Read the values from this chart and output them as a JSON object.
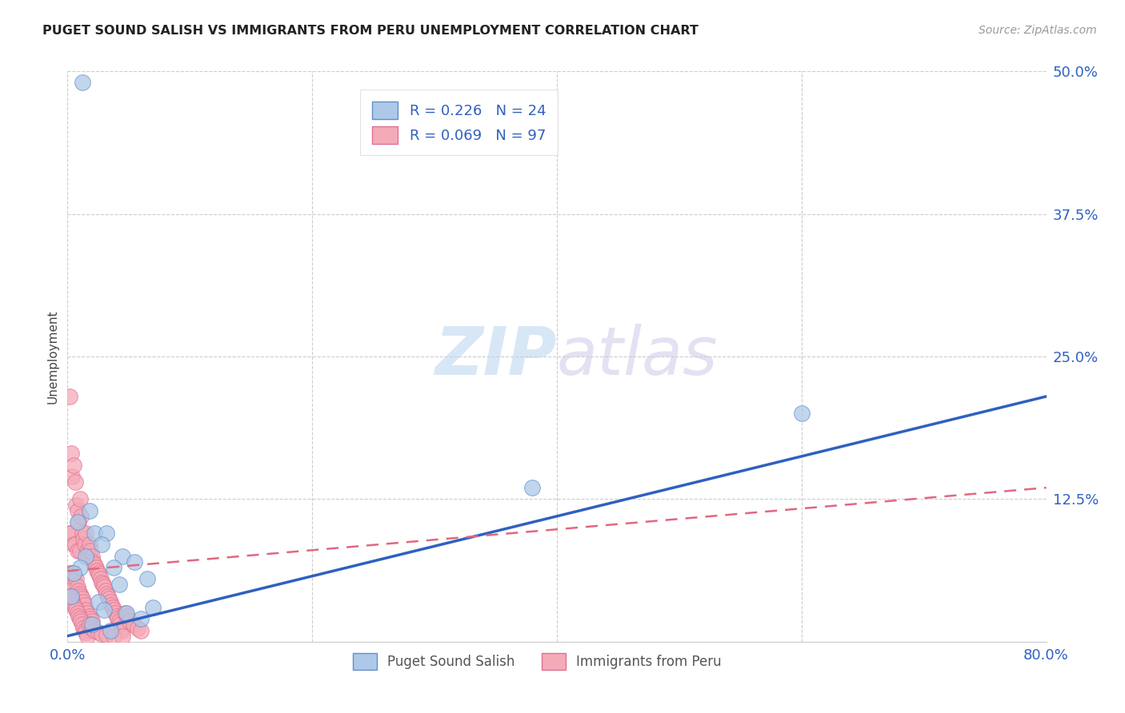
{
  "title": "PUGET SOUND SALISH VS IMMIGRANTS FROM PERU UNEMPLOYMENT CORRELATION CHART",
  "source": "Source: ZipAtlas.com",
  "ylabel": "Unemployment",
  "xlabel": "",
  "xlim": [
    0.0,
    0.8
  ],
  "ylim": [
    0.0,
    0.5
  ],
  "xticks": [
    0.0,
    0.2,
    0.4,
    0.6,
    0.8
  ],
  "xtick_labels": [
    "0.0%",
    "",
    "",
    "",
    "80.0%"
  ],
  "yticks": [
    0.0,
    0.125,
    0.25,
    0.375,
    0.5
  ],
  "ytick_labels": [
    "",
    "12.5%",
    "25.0%",
    "37.5%",
    "50.0%"
  ],
  "blue_R": 0.226,
  "blue_N": 24,
  "pink_R": 0.069,
  "pink_N": 97,
  "blue_label": "Puget Sound Salish",
  "pink_label": "Immigrants from Peru",
  "blue_color": "#adc8e8",
  "pink_color": "#f5aab8",
  "blue_edge_color": "#6090c8",
  "pink_edge_color": "#e07090",
  "blue_line_color": "#3060c0",
  "pink_line_color": "#e06880",
  "legend_R_color": "#3060c0",
  "background_color": "#ffffff",
  "blue_line_x0": 0.0,
  "blue_line_y0": 0.005,
  "blue_line_x1": 0.8,
  "blue_line_y1": 0.215,
  "pink_line_x0": 0.0,
  "pink_line_y0": 0.062,
  "pink_line_x1": 0.8,
  "pink_line_y1": 0.135,
  "blue_scatter_x": [
    0.012,
    0.008,
    0.022,
    0.018,
    0.032,
    0.045,
    0.028,
    0.015,
    0.038,
    0.055,
    0.01,
    0.005,
    0.065,
    0.042,
    0.003,
    0.07,
    0.025,
    0.03,
    0.048,
    0.06,
    0.02,
    0.035,
    0.6,
    0.38
  ],
  "blue_scatter_y": [
    0.49,
    0.105,
    0.095,
    0.115,
    0.095,
    0.075,
    0.085,
    0.075,
    0.065,
    0.07,
    0.065,
    0.06,
    0.055,
    0.05,
    0.04,
    0.03,
    0.035,
    0.028,
    0.025,
    0.02,
    0.015,
    0.01,
    0.2,
    0.135
  ],
  "pink_scatter_x": [
    0.002,
    0.002,
    0.002,
    0.003,
    0.003,
    0.003,
    0.004,
    0.004,
    0.005,
    0.005,
    0.005,
    0.006,
    0.006,
    0.006,
    0.007,
    0.007,
    0.008,
    0.008,
    0.008,
    0.009,
    0.009,
    0.01,
    0.01,
    0.01,
    0.011,
    0.011,
    0.012,
    0.012,
    0.013,
    0.013,
    0.014,
    0.014,
    0.015,
    0.015,
    0.016,
    0.016,
    0.017,
    0.018,
    0.018,
    0.019,
    0.019,
    0.02,
    0.02,
    0.021,
    0.022,
    0.023,
    0.024,
    0.025,
    0.026,
    0.027,
    0.028,
    0.029,
    0.03,
    0.031,
    0.032,
    0.033,
    0.034,
    0.035,
    0.036,
    0.037,
    0.038,
    0.039,
    0.04,
    0.041,
    0.042,
    0.043,
    0.044,
    0.045,
    0.047,
    0.049,
    0.051,
    0.054,
    0.057,
    0.06,
    0.002,
    0.003,
    0.004,
    0.005,
    0.006,
    0.007,
    0.008,
    0.009,
    0.01,
    0.011,
    0.012,
    0.013,
    0.014,
    0.015,
    0.016,
    0.018,
    0.02,
    0.022,
    0.025,
    0.028,
    0.032,
    0.038,
    0.045
  ],
  "pink_scatter_y": [
    0.215,
    0.095,
    0.06,
    0.165,
    0.095,
    0.06,
    0.145,
    0.06,
    0.155,
    0.085,
    0.055,
    0.14,
    0.085,
    0.05,
    0.12,
    0.055,
    0.115,
    0.08,
    0.048,
    0.105,
    0.045,
    0.125,
    0.08,
    0.042,
    0.11,
    0.04,
    0.095,
    0.038,
    0.09,
    0.035,
    0.085,
    0.032,
    0.095,
    0.028,
    0.08,
    0.025,
    0.075,
    0.085,
    0.022,
    0.08,
    0.02,
    0.075,
    0.018,
    0.07,
    0.068,
    0.065,
    0.062,
    0.06,
    0.058,
    0.055,
    0.052,
    0.05,
    0.048,
    0.045,
    0.042,
    0.04,
    0.038,
    0.035,
    0.032,
    0.03,
    0.028,
    0.025,
    0.022,
    0.02,
    0.018,
    0.015,
    0.012,
    0.01,
    0.025,
    0.022,
    0.018,
    0.015,
    0.012,
    0.01,
    0.04,
    0.038,
    0.035,
    0.032,
    0.03,
    0.028,
    0.025,
    0.022,
    0.02,
    0.018,
    0.015,
    0.012,
    0.01,
    0.008,
    0.005,
    0.015,
    0.012,
    0.01,
    0.008,
    0.007,
    0.006,
    0.005,
    0.005
  ]
}
